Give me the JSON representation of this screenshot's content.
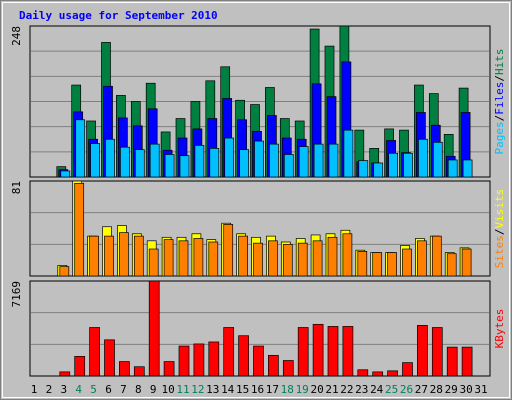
{
  "chart_data": [
    {
      "type": "bar",
      "title": "Daily usage for September 2010",
      "ylim": [
        0,
        248
      ],
      "yticks": [
        248
      ],
      "grid_divisions": 6,
      "legend_separator": "/",
      "series": [
        {
          "name": "Hits",
          "color": "#008040",
          "values": [
            0,
            0,
            17,
            151,
            92,
            221,
            134,
            124,
            154,
            74,
            96,
            124,
            158,
            181,
            126,
            119,
            147,
            96,
            92,
            243,
            215,
            248,
            77,
            47,
            79,
            77,
            151,
            137,
            70,
            146,
            0
          ]
        },
        {
          "name": "Files",
          "color": "#0000ff",
          "values": [
            0,
            0,
            12,
            107,
            62,
            149,
            97,
            84,
            112,
            44,
            64,
            79,
            96,
            129,
            94,
            75,
            101,
            64,
            62,
            153,
            132,
            189,
            25,
            23,
            60,
            40,
            106,
            85,
            34,
            106,
            0
          ]
        },
        {
          "name": "Pages",
          "color": "#00c0ff",
          "values": [
            0,
            0,
            10,
            94,
            55,
            62,
            49,
            45,
            54,
            37,
            35,
            52,
            47,
            64,
            45,
            59,
            54,
            37,
            50,
            54,
            54,
            77,
            27,
            23,
            39,
            39,
            62,
            57,
            28,
            28,
            0
          ]
        }
      ]
    },
    {
      "type": "bar",
      "ylim": [
        0,
        81
      ],
      "yticks": [
        81
      ],
      "grid_divisions": 3,
      "legend_separator": "/",
      "series": [
        {
          "name": "Visits",
          "color": "#ffff00",
          "values": [
            0,
            0,
            9,
            81,
            34,
            42,
            43,
            36,
            30,
            33,
            33,
            36,
            31,
            45,
            36,
            33,
            34,
            29,
            32,
            35,
            36,
            39,
            22,
            20,
            20,
            26,
            32,
            34,
            20,
            24,
            0
          ]
        },
        {
          "name": "Sites",
          "color": "#ff8000",
          "values": [
            0,
            0,
            8,
            79,
            34,
            34,
            37,
            34,
            23,
            31,
            30,
            32,
            29,
            44,
            34,
            28,
            30,
            27,
            28,
            30,
            33,
            36,
            21,
            20,
            20,
            23,
            30,
            34,
            19,
            23,
            0
          ]
        }
      ]
    },
    {
      "type": "bar",
      "ylim": [
        0,
        7169
      ],
      "yticks": [
        7169
      ],
      "grid_divisions": 3,
      "categories": [
        1,
        2,
        3,
        4,
        5,
        6,
        7,
        8,
        9,
        10,
        11,
        12,
        13,
        14,
        15,
        16,
        17,
        18,
        19,
        20,
        21,
        22,
        23,
        24,
        25,
        26,
        27,
        28,
        29,
        30,
        31
      ],
      "category_colors": [
        "#000000",
        "#000000",
        "#000000",
        "#00805c",
        "#00805c",
        "#000000",
        "#000000",
        "#000000",
        "#000000",
        "#000000",
        "#00805c",
        "#00805c",
        "#000000",
        "#000000",
        "#000000",
        "#000000",
        "#000000",
        "#00805c",
        "#00805c",
        "#000000",
        "#000000",
        "#000000",
        "#000000",
        "#000000",
        "#00805c",
        "#00805c",
        "#000000",
        "#000000",
        "#000000",
        "#000000",
        "#000000"
      ],
      "series": [
        {
          "name": "KBytes",
          "color": "#ff0000",
          "values": [
            0,
            0,
            312,
            1480,
            3660,
            2730,
            1090,
            700,
            7169,
            1090,
            2260,
            2420,
            2570,
            3660,
            3040,
            2260,
            1560,
            1170,
            3660,
            3900,
            3740,
            3740,
            470,
            310,
            390,
            1010,
            3820,
            3660,
            2180,
            2180,
            0
          ]
        }
      ]
    }
  ]
}
